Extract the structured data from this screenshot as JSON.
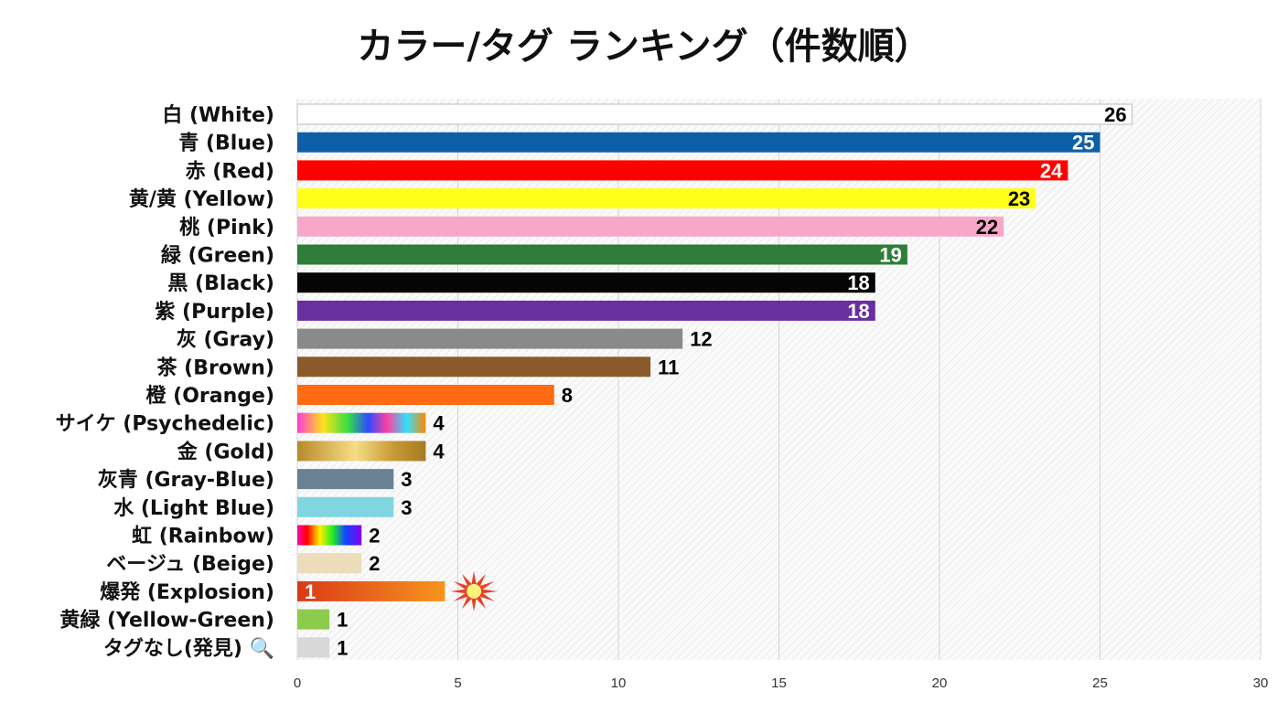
{
  "chart_data": {
    "type": "bar",
    "orientation": "horizontal",
    "title": "カラー/タグ ランキング（件数順）",
    "xlabel": "",
    "ylabel": "",
    "xlim": [
      0,
      30
    ],
    "xticks": [
      0,
      5,
      10,
      15,
      20,
      25,
      30
    ],
    "grid": true,
    "categories": [
      "白 (White)",
      "青 (Blue)",
      "赤 (Red)",
      "黄/黄 (Yellow)",
      "桃 (Pink)",
      "緑 (Green)",
      "黒 (Black)",
      "紫 (Purple)",
      "灰 (Gray)",
      "茶 (Brown)",
      "橙 (Orange)",
      "サイケ (Psychedelic)",
      "金 (Gold)",
      "灰青 (Gray-Blue)",
      "水 (Light Blue)",
      "虹 (Rainbow)",
      "ベージュ (Beige)",
      "爆発 (Explosion)",
      "黄緑 (Yellow-Green)",
      "タグなし(発見) 🔍"
    ],
    "values": [
      26,
      25,
      24,
      23,
      22,
      19,
      18,
      18,
      12,
      11,
      8,
      4,
      4,
      3,
      3,
      2,
      2,
      1,
      1,
      1
    ],
    "colors": [
      "#ffffff",
      "#0f5fa8",
      "#ff0000",
      "#ffff1a",
      "#f7a8c8",
      "#2e7d3a",
      "#050505",
      "#6a2f9e",
      "#8a8a8a",
      "#8b5a2b",
      "#ff6a13",
      "psychedelic",
      "gold",
      "#6b8196",
      "#7fd6e0",
      "rainbow",
      "#ecdcbc",
      "explosion",
      "#8ccc4a",
      "#d8d8d8"
    ],
    "label_colors": [
      "#000",
      "#fff",
      "#fff",
      "#000",
      "#000",
      "#fff",
      "#fff",
      "#fff",
      "#000",
      "#000",
      "#000",
      "#000",
      "#000",
      "#000",
      "#000",
      "#000",
      "#000",
      "#fff",
      "#000",
      "#000"
    ]
  }
}
